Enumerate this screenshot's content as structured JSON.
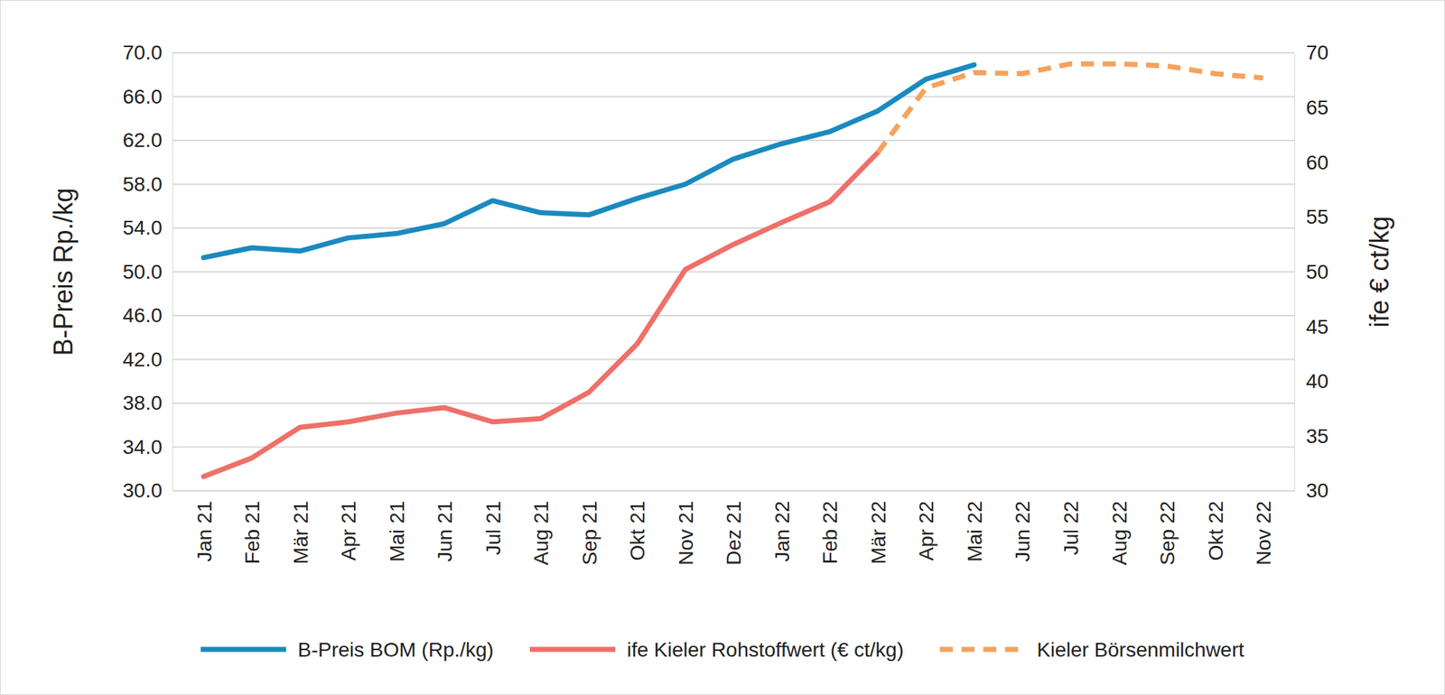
{
  "chart_data": {
    "type": "line",
    "y_label": "B-Preis Rp./kg",
    "y2_label": "ife € ct/kg",
    "categories": [
      "Jan 21",
      "Feb 21",
      "Mär 21",
      "Apr 21",
      "Mai 21",
      "Jun 21",
      "Jul 21",
      "Aug 21",
      "Sep 21",
      "Okt 21",
      "Nov 21",
      "Dez 21",
      "Jan 22",
      "Feb 22",
      "Mär 22",
      "Apr 22",
      "Mai 22",
      "Jun 22",
      "Jul 22",
      "Aug 22",
      "Sep 22",
      "Okt 22",
      "Nov 22"
    ],
    "series": [
      {
        "name": "B-Preis BOM (Rp./kg)",
        "color": "#1a8abf",
        "line_style": "solid",
        "values": [
          51.3,
          52.2,
          51.9,
          53.1,
          53.5,
          54.4,
          56.5,
          55.4,
          55.2,
          56.7,
          58.0,
          60.3,
          61.7,
          62.8,
          64.7,
          67.6,
          68.9,
          null,
          null,
          null,
          null,
          null,
          null
        ]
      },
      {
        "name": "ife Kieler Rohstoffwert (€ ct/kg)",
        "color": "#ee7069",
        "line_style": "solid",
        "axis": "y2",
        "values": [
          31.3,
          33.0,
          35.8,
          36.3,
          37.1,
          37.6,
          36.3,
          36.6,
          39.0,
          43.4,
          50.2,
          52.5,
          54.5,
          56.4,
          60.9,
          null,
          null,
          null,
          null,
          null,
          null,
          null,
          null
        ]
      },
      {
        "name": "Kieler Börsenmilchwert",
        "color": "#f5a25d",
        "line_style": "dashed",
        "axis": "y2",
        "values": [
          null,
          null,
          null,
          null,
          null,
          null,
          null,
          null,
          null,
          null,
          null,
          null,
          null,
          null,
          60.9,
          66.8,
          68.2,
          68.1,
          69.0,
          69.0,
          68.8,
          68.1,
          67.7
        ]
      }
    ],
    "ylim": [
      30,
      70
    ],
    "yticks": [
      {
        "value": 30,
        "label": "30.0"
      },
      {
        "value": 34,
        "label": "34.0"
      },
      {
        "value": 38,
        "label": "38.0"
      },
      {
        "value": 42,
        "label": "42.0"
      },
      {
        "value": 46,
        "label": "46.0"
      },
      {
        "value": 50,
        "label": "50.0"
      },
      {
        "value": 54,
        "label": "54.0"
      },
      {
        "value": 58,
        "label": "58.0"
      },
      {
        "value": 62,
        "label": "62.0"
      },
      {
        "value": 66,
        "label": "66.0"
      },
      {
        "value": 70,
        "label": "70.0"
      }
    ],
    "y2lim": [
      30,
      70
    ],
    "y2ticks": [
      30,
      35,
      40,
      45,
      50,
      55,
      60,
      65,
      70
    ],
    "grid": true,
    "legend": "bottom"
  }
}
